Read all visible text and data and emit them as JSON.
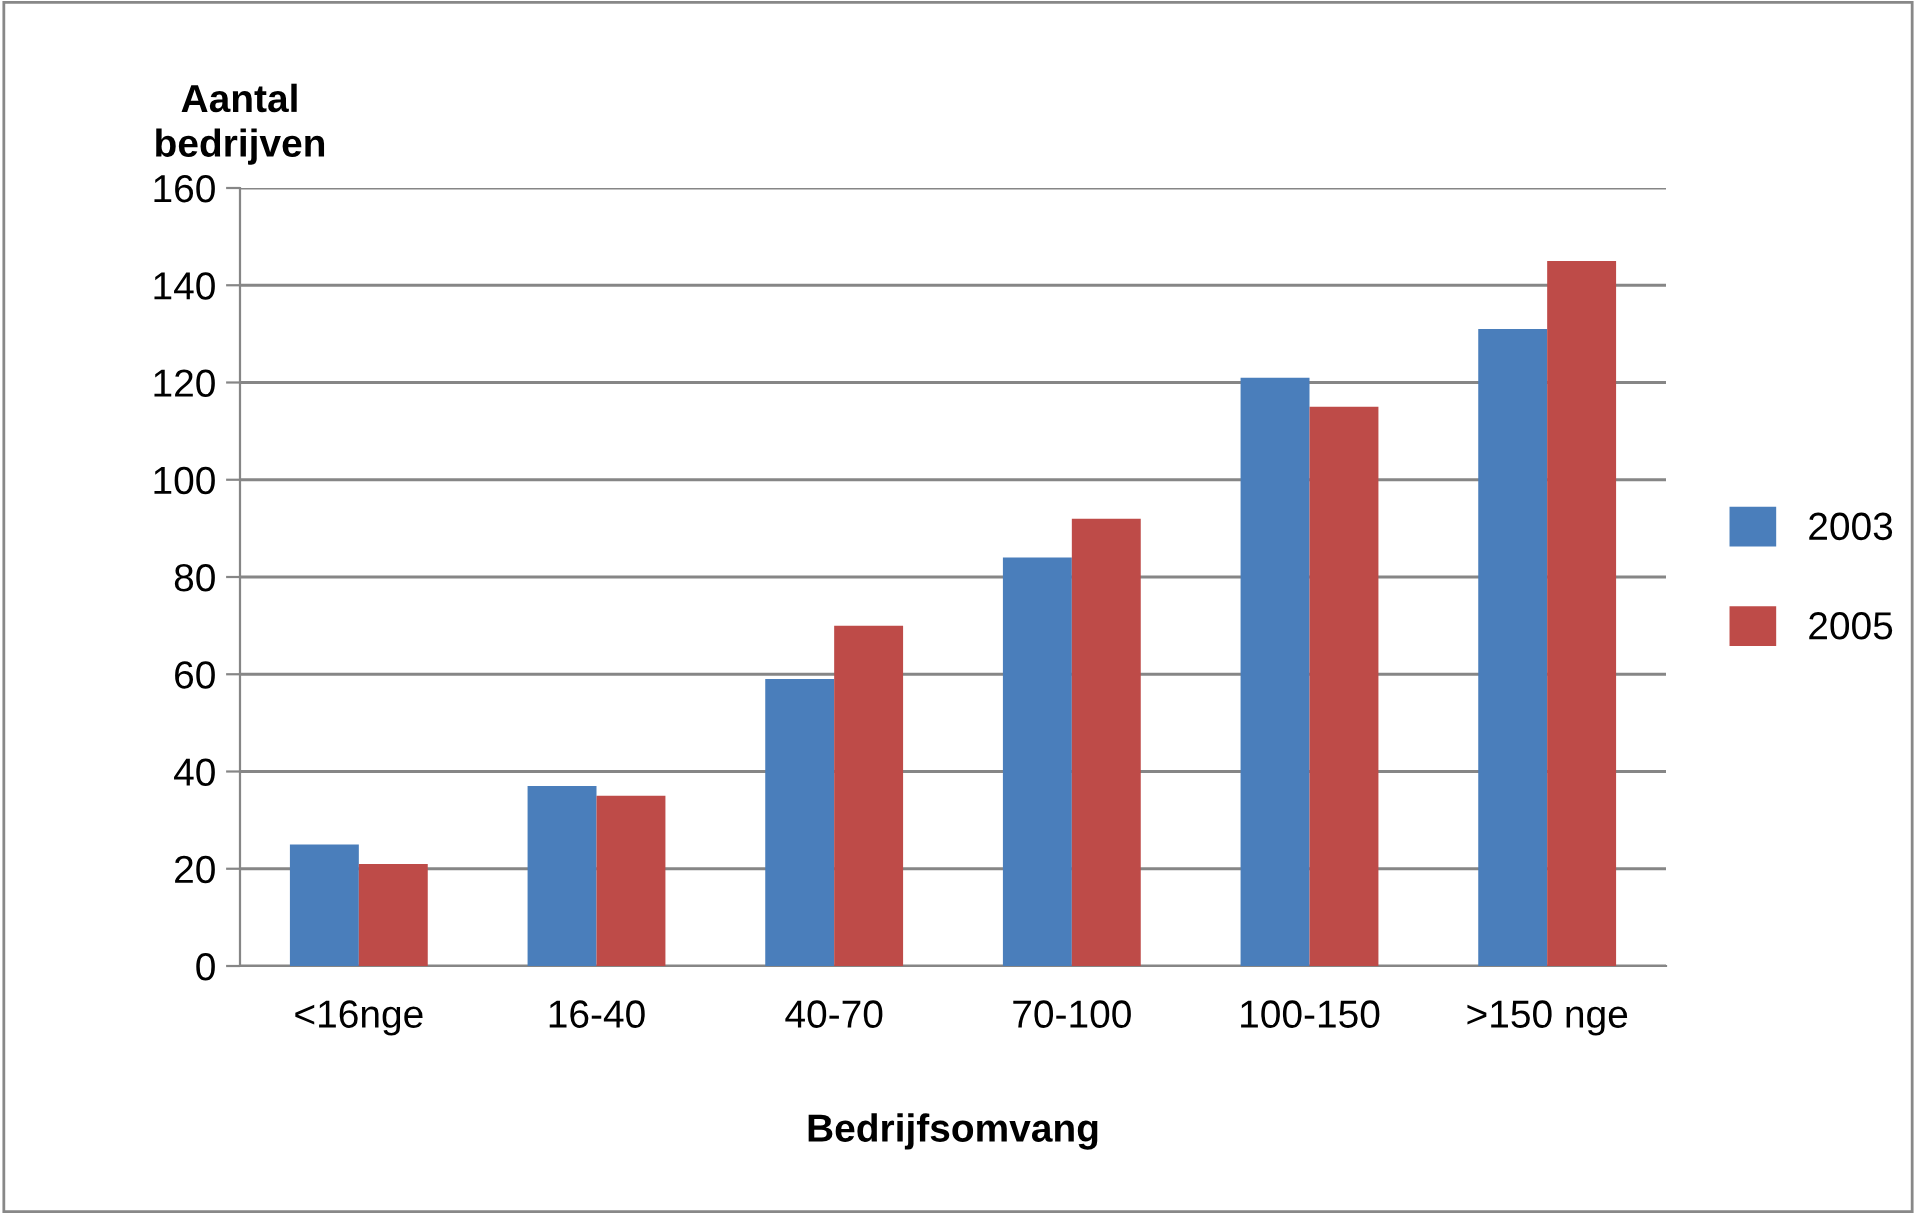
{
  "chart_data": {
    "type": "bar",
    "xlabel": "Bedrijfsomvang",
    "ylabel": "Aantal\nbedrijven",
    "categories": [
      "<16nge",
      "16-40",
      "40-70",
      "70-100",
      "100-150",
      ">150 nge"
    ],
    "series": [
      {
        "name": "2003",
        "color": "#4a7ebb",
        "values": [
          25,
          37,
          59,
          84,
          121,
          131
        ]
      },
      {
        "name": "2005",
        "color": "#be4b48",
        "values": [
          21,
          35,
          70,
          92,
          115,
          145
        ]
      }
    ],
    "ylim": [
      0,
      160
    ],
    "yticks": [
      0,
      20,
      40,
      60,
      80,
      100,
      120,
      140,
      160
    ],
    "grid": "y",
    "legend": "right"
  }
}
